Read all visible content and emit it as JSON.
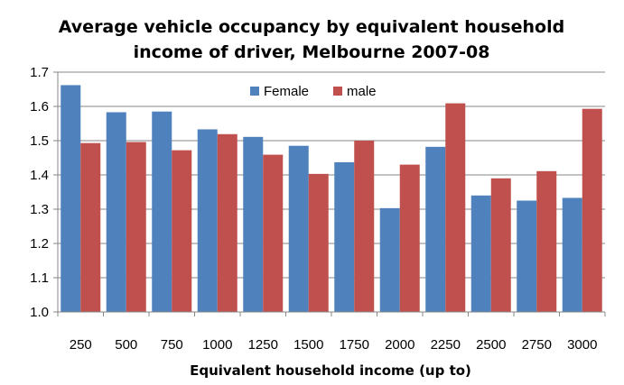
{
  "chart_data": {
    "type": "bar",
    "title_lines": [
      "Average vehicle occupancy by equivalent household",
      "income of driver, Melbourne 2007-08"
    ],
    "xlabel": "Equivalent household income (up to)",
    "ylabel": "",
    "categories": [
      "250",
      "500",
      "750",
      "1000",
      "1250",
      "1500",
      "1750",
      "2000",
      "2250",
      "2500",
      "2750",
      "3000"
    ],
    "series": [
      {
        "name": "Female",
        "color": "#4F81BD",
        "values": [
          1.662,
          1.583,
          1.585,
          1.533,
          1.511,
          1.485,
          1.437,
          1.303,
          1.482,
          1.34,
          1.325,
          1.333
        ]
      },
      {
        "name": "male",
        "color": "#C0504D",
        "values": [
          1.493,
          1.496,
          1.472,
          1.519,
          1.459,
          1.403,
          1.5,
          1.43,
          1.609,
          1.39,
          1.411,
          1.593
        ]
      }
    ],
    "ylim": [
      1.0,
      1.7
    ],
    "yticks": [
      "1.0",
      "1.1",
      "1.2",
      "1.3",
      "1.4",
      "1.5",
      "1.6",
      "1.7"
    ],
    "grid": true,
    "legend_position": "top-center"
  }
}
